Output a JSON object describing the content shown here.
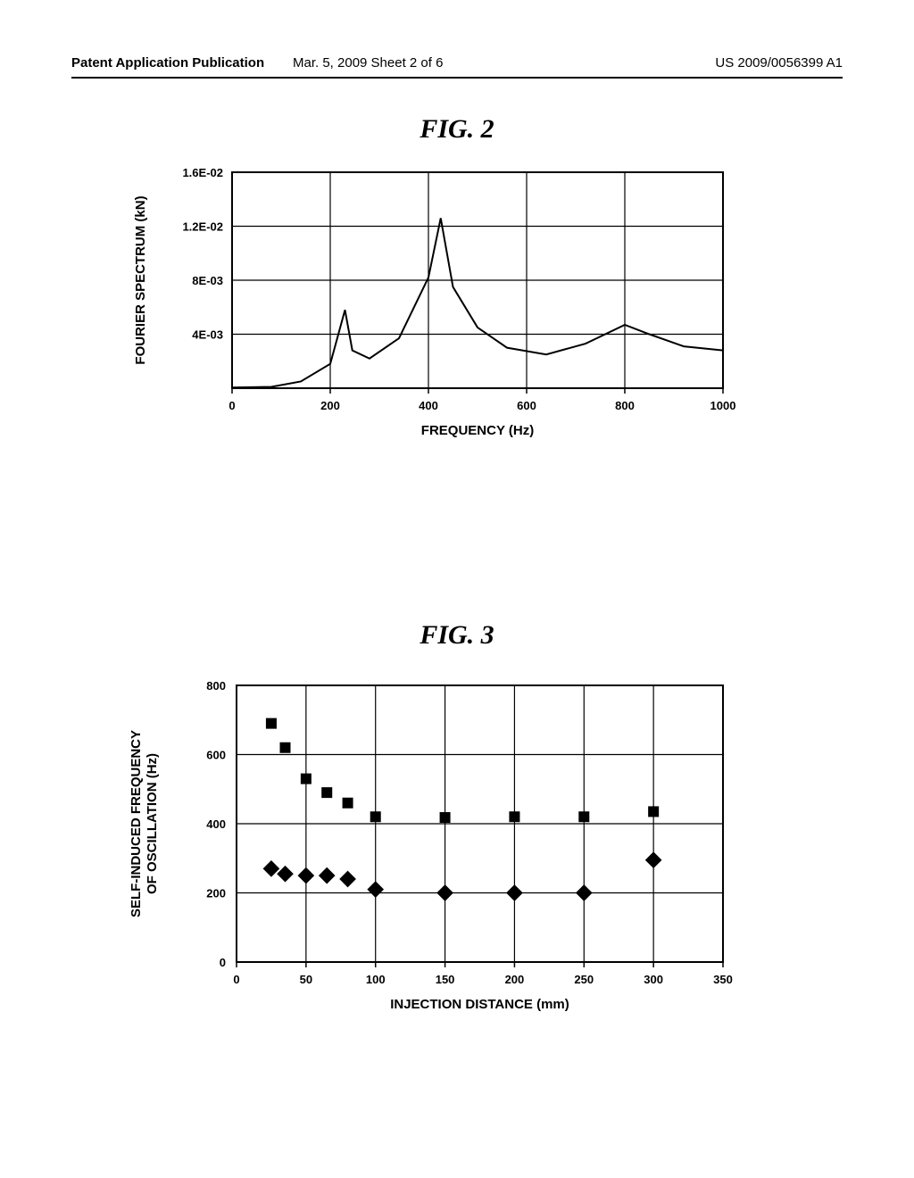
{
  "header": {
    "left": "Patent Application Publication",
    "mid": "Mar. 5, 2009  Sheet 2 of 6",
    "right": "US 2009/0056399 A1"
  },
  "fig2": {
    "title": "FIG. 2",
    "type": "line",
    "xlabel": "FREQUENCY (Hz)",
    "ylabel": "FOURIER SPECTRUM (kN)",
    "x_ticks": [
      0,
      200,
      400,
      600,
      800,
      1000
    ],
    "y_ticks": [
      "4E-03",
      "8E-03",
      "1.2E-02",
      "1.6E-02"
    ],
    "y_tick_values": [
      0.004,
      0.008,
      0.012,
      0.016
    ],
    "xlim": [
      0,
      1000
    ],
    "ylim": [
      0,
      0.016
    ],
    "line_color": "#000000",
    "line_width": 2,
    "grid_color": "#000000",
    "background_color": "#ffffff",
    "label_fontsize": 15,
    "tick_fontsize": 13,
    "data": [
      {
        "x": 0,
        "y": 5e-05
      },
      {
        "x": 80,
        "y": 0.0001
      },
      {
        "x": 140,
        "y": 0.0005
      },
      {
        "x": 200,
        "y": 0.0018
      },
      {
        "x": 230,
        "y": 0.0058
      },
      {
        "x": 245,
        "y": 0.0028
      },
      {
        "x": 280,
        "y": 0.0022
      },
      {
        "x": 340,
        "y": 0.0037
      },
      {
        "x": 400,
        "y": 0.0082
      },
      {
        "x": 425,
        "y": 0.0126
      },
      {
        "x": 450,
        "y": 0.0075
      },
      {
        "x": 500,
        "y": 0.0045
      },
      {
        "x": 560,
        "y": 0.003
      },
      {
        "x": 640,
        "y": 0.0025
      },
      {
        "x": 720,
        "y": 0.0033
      },
      {
        "x": 800,
        "y": 0.0047
      },
      {
        "x": 850,
        "y": 0.004
      },
      {
        "x": 920,
        "y": 0.0031
      },
      {
        "x": 1000,
        "y": 0.0028
      }
    ]
  },
  "fig3": {
    "title": "FIG. 3",
    "type": "scatter",
    "xlabel": "INJECTION DISTANCE (mm)",
    "ylabel": "SELF-INDUCED FREQUENCY\nOF OSCILLATION (Hz)",
    "x_ticks": [
      0,
      50,
      100,
      150,
      200,
      250,
      300,
      350
    ],
    "y_ticks": [
      0,
      200,
      400,
      600,
      800
    ],
    "xlim": [
      0,
      350
    ],
    "ylim": [
      0,
      800
    ],
    "grid_color": "#000000",
    "background_color": "#ffffff",
    "label_fontsize": 15,
    "tick_fontsize": 13,
    "series": [
      {
        "marker": "square",
        "color": "#000000",
        "size": 12,
        "points": [
          {
            "x": 25,
            "y": 690
          },
          {
            "x": 35,
            "y": 620
          },
          {
            "x": 50,
            "y": 530
          },
          {
            "x": 65,
            "y": 490
          },
          {
            "x": 80,
            "y": 460
          },
          {
            "x": 100,
            "y": 420
          },
          {
            "x": 150,
            "y": 418
          },
          {
            "x": 200,
            "y": 420
          },
          {
            "x": 250,
            "y": 420
          },
          {
            "x": 300,
            "y": 435
          }
        ]
      },
      {
        "marker": "diamond",
        "color": "#000000",
        "size": 14,
        "points": [
          {
            "x": 25,
            "y": 270
          },
          {
            "x": 35,
            "y": 255
          },
          {
            "x": 50,
            "y": 250
          },
          {
            "x": 65,
            "y": 250
          },
          {
            "x": 80,
            "y": 240
          },
          {
            "x": 100,
            "y": 210
          },
          {
            "x": 150,
            "y": 200
          },
          {
            "x": 200,
            "y": 200
          },
          {
            "x": 250,
            "y": 200
          },
          {
            "x": 300,
            "y": 295
          }
        ]
      }
    ]
  }
}
